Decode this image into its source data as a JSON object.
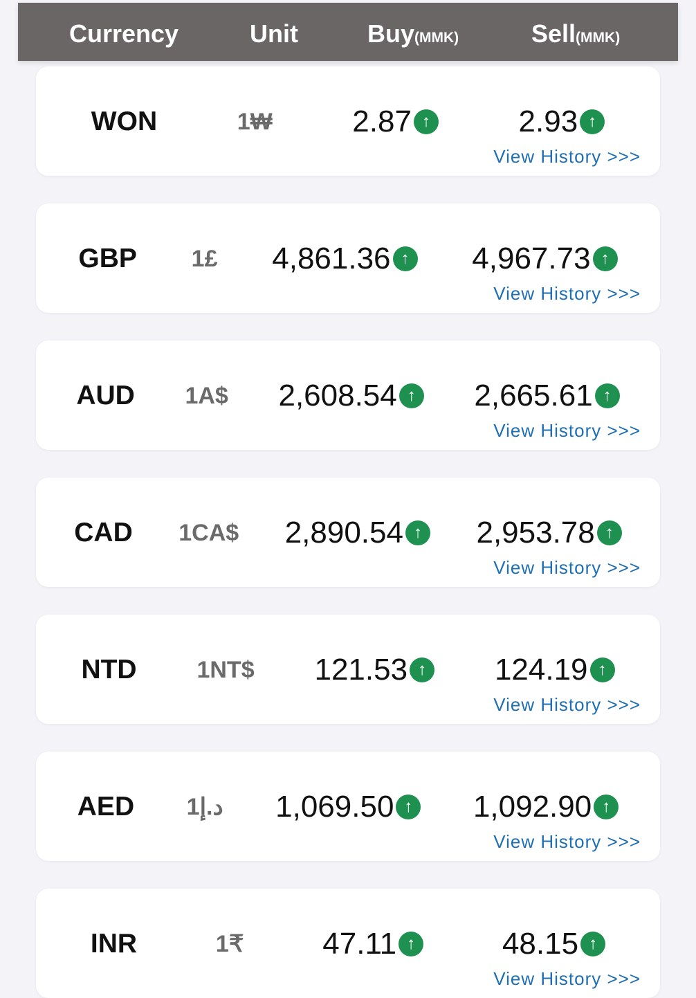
{
  "header": {
    "currency": "Currency",
    "unit": "Unit",
    "buy": "Buy",
    "buy_unit": "(MMK)",
    "sell": "Sell",
    "sell_unit": "(MMK)"
  },
  "trend_icon": "arrow-up-circle-icon",
  "colors": {
    "header_bg": "#6b6666",
    "up": "#1e9150",
    "link": "#1f6fb5"
  },
  "rows": [
    {
      "name": "WON",
      "unit": "1₩",
      "buy": "2.87",
      "sell": "2.93",
      "trend": "up",
      "link": "View History >>>"
    },
    {
      "name": "GBP",
      "unit": "1£",
      "buy": "4,861.36",
      "sell": "4,967.73",
      "trend": "up",
      "link": "View History >>>"
    },
    {
      "name": "AUD",
      "unit": "1A$",
      "buy": "2,608.54",
      "sell": "2,665.61",
      "trend": "up",
      "link": "View History >>>"
    },
    {
      "name": "CAD",
      "unit": "1CA$",
      "buy": "2,890.54",
      "sell": "2,953.78",
      "trend": "up",
      "link": "View History >>>"
    },
    {
      "name": "NTD",
      "unit": "1NT$",
      "buy": "121.53",
      "sell": "124.19",
      "trend": "up",
      "link": "View History >>>"
    },
    {
      "name": "AED",
      "unit": "1د.إ",
      "buy": "1,069.50",
      "sell": "1,092.90",
      "trend": "up",
      "link": "View History >>>"
    },
    {
      "name": "INR",
      "unit": "1₹",
      "buy": "47.11",
      "sell": "48.15",
      "trend": "up",
      "link": "View History >>>"
    }
  ]
}
